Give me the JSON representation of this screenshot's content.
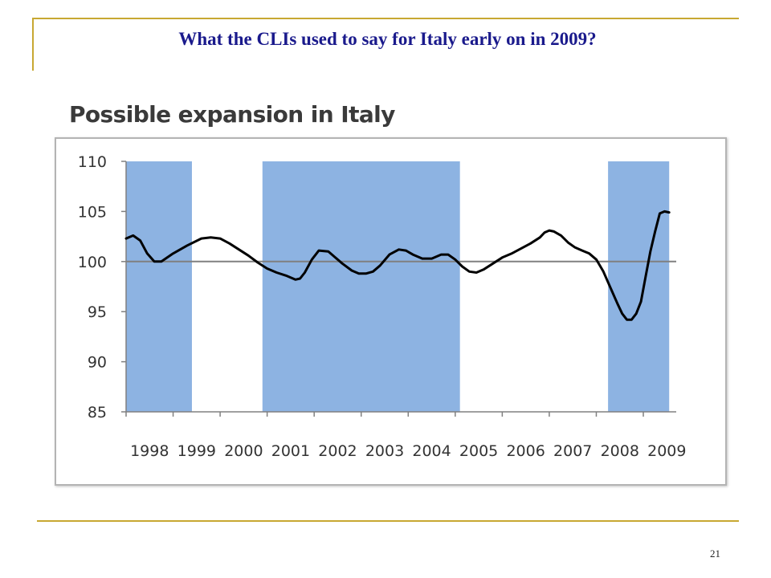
{
  "slide": {
    "title": "What the CLIs used to say for Italy early on in 2009?",
    "page_number": "21"
  },
  "colors": {
    "title": "#1a1a8c",
    "accent_lines": "#c8a832",
    "shading": "#8db3e2",
    "series_line": "#000000",
    "reference_line": "#808080"
  },
  "chart_data": {
    "type": "line",
    "title": "Possible expansion in Italy",
    "xlabel": "",
    "ylabel": "",
    "xlim": [
      1998,
      2009.7
    ],
    "ylim": [
      85,
      110
    ],
    "yticks": [
      110,
      105,
      100,
      95,
      90,
      85
    ],
    "xtick_labels": [
      "1998",
      "1999",
      "2000",
      "2001",
      "2002",
      "2003",
      "2004",
      "2005",
      "2006",
      "2007",
      "2008",
      "2009"
    ],
    "reference_line": 100,
    "grid": false,
    "legend": "none",
    "shaded_periods": [
      [
        1998.0,
        1999.4
      ],
      [
        2000.9,
        2005.1
      ],
      [
        2008.25,
        2009.55
      ]
    ],
    "series": [
      {
        "x": [
          1998.0,
          1998.15,
          1998.3,
          1998.45,
          1998.6,
          1998.75,
          1999.0,
          1999.3,
          1999.6,
          1999.8,
          2000.0,
          2000.2,
          2000.4,
          2000.6,
          2000.8,
          2001.0,
          2001.2,
          2001.4,
          2001.6,
          2001.7,
          2001.8,
          2001.95,
          2002.1,
          2002.3,
          2002.45,
          2002.6,
          2002.8,
          2002.95,
          2003.1,
          2003.25,
          2003.4,
          2003.6,
          2003.8,
          2003.95,
          2004.1,
          2004.3,
          2004.5,
          2004.7,
          2004.85,
          2005.0,
          2005.15,
          2005.3,
          2005.45,
          2005.6,
          2005.8,
          2006.0,
          2006.2,
          2006.4,
          2006.6,
          2006.8,
          2006.9,
          2007.0,
          2007.1,
          2007.25,
          2007.4,
          2007.55,
          2007.7,
          2007.85,
          2008.0,
          2008.15,
          2008.3,
          2008.45,
          2008.55,
          2008.65,
          2008.75,
          2008.85,
          2008.95,
          2009.05,
          2009.15,
          2009.25,
          2009.35,
          2009.45,
          2009.55
        ],
        "values": [
          102.3,
          102.6,
          102.1,
          100.8,
          100.0,
          100.0,
          100.8,
          101.6,
          102.3,
          102.4,
          102.3,
          101.8,
          101.2,
          100.6,
          99.9,
          99.3,
          98.9,
          98.6,
          98.2,
          98.3,
          98.9,
          100.2,
          101.1,
          101.0,
          100.4,
          99.8,
          99.1,
          98.8,
          98.8,
          99.0,
          99.6,
          100.7,
          101.2,
          101.1,
          100.7,
          100.3,
          100.3,
          100.7,
          100.7,
          100.2,
          99.5,
          99.0,
          98.9,
          99.2,
          99.8,
          100.4,
          100.8,
          101.3,
          101.8,
          102.4,
          102.9,
          103.1,
          103.0,
          102.6,
          101.9,
          101.4,
          101.1,
          100.8,
          100.2,
          99.0,
          97.4,
          95.8,
          94.8,
          94.2,
          94.2,
          94.8,
          96.0,
          98.5,
          101.0,
          103.0,
          104.8,
          105.0,
          104.9
        ]
      }
    ]
  }
}
